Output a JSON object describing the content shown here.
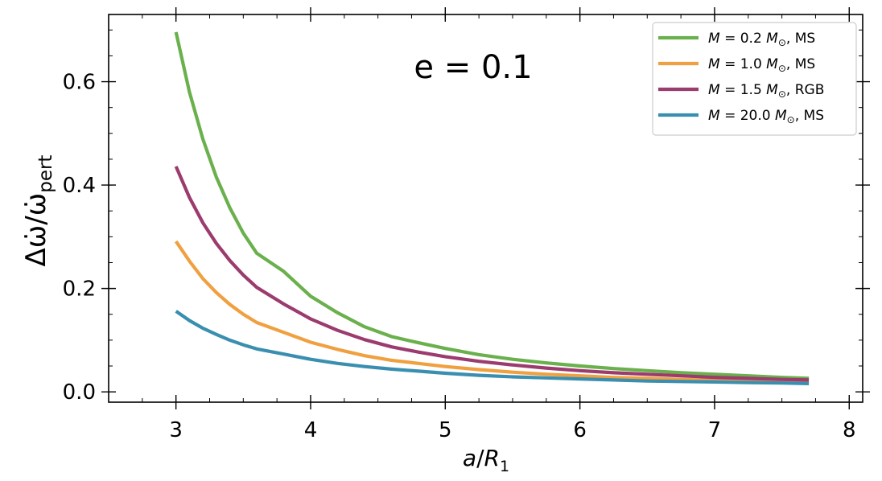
{
  "chart_data": {
    "type": "line",
    "title": "",
    "annotation": "e = 0.1",
    "xlabel_var": "a",
    "xlabel_slash": "/",
    "xlabel_var2": "R",
    "xlabel_sub": "1",
    "ylabel_main": "Δω̇/ω̇",
    "ylabel_sub": "pert",
    "xlim": [
      2.5,
      8.1
    ],
    "ylim": [
      -0.02,
      0.73
    ],
    "xticks": [
      3,
      4,
      5,
      6,
      7,
      8
    ],
    "xtick_labels": [
      "3",
      "4",
      "5",
      "6",
      "7",
      "8"
    ],
    "yticks": [
      0.0,
      0.2,
      0.4,
      0.6
    ],
    "ytick_labels": [
      "0.0",
      "0.2",
      "0.4",
      "0.6"
    ],
    "grid": false,
    "legend_position": "top-right",
    "x": [
      3.0,
      3.1,
      3.2,
      3.3,
      3.4,
      3.5,
      3.6,
      3.8,
      4.0,
      4.2,
      4.4,
      4.6,
      4.8,
      5.0,
      5.25,
      5.5,
      5.75,
      6.0,
      6.25,
      6.5,
      6.75,
      7.0,
      7.25,
      7.5,
      7.7
    ],
    "series": [
      {
        "name": "M = 0.2 M⊙, MS",
        "legend_parts": [
          "M",
          " = 0.2 ",
          "M",
          "⊙",
          ", MS"
        ],
        "color": "#6ab04c",
        "values": [
          0.696,
          0.58,
          0.489,
          0.415,
          0.356,
          0.307,
          0.268,
          0.233,
          0.185,
          0.153,
          0.126,
          0.107,
          0.095,
          0.084,
          0.072,
          0.063,
          0.056,
          0.05,
          0.045,
          0.041,
          0.037,
          0.034,
          0.031,
          0.028,
          0.026
        ]
      },
      {
        "name": "M = 1.0 M⊙, MS",
        "legend_parts": [
          "M",
          " = 1.0 ",
          "M",
          "⊙",
          ", MS"
        ],
        "color": "#f0a040",
        "values": [
          0.291,
          0.253,
          0.219,
          0.192,
          0.169,
          0.15,
          0.134,
          0.115,
          0.096,
          0.082,
          0.07,
          0.061,
          0.055,
          0.049,
          0.043,
          0.038,
          0.034,
          0.031,
          0.028,
          0.026,
          0.024,
          0.022,
          0.021,
          0.02,
          0.019
        ]
      },
      {
        "name": "M = 1.5 M⊙, RGB",
        "legend_parts": [
          "M",
          " = 1.5 ",
          "M",
          "⊙",
          ", RGB"
        ],
        "color": "#9b3b6e",
        "values": [
          0.436,
          0.376,
          0.327,
          0.287,
          0.254,
          0.226,
          0.202,
          0.17,
          0.141,
          0.119,
          0.101,
          0.087,
          0.077,
          0.068,
          0.059,
          0.052,
          0.046,
          0.041,
          0.037,
          0.034,
          0.031,
          0.028,
          0.026,
          0.024,
          0.023
        ]
      },
      {
        "name": "M = 20.0 M⊙, MS",
        "legend_parts": [
          "M",
          " = 20.0 ",
          "M",
          "⊙",
          ", MS"
        ],
        "color": "#3a8fb0",
        "values": [
          0.156,
          0.138,
          0.123,
          0.111,
          0.1,
          0.091,
          0.083,
          0.073,
          0.063,
          0.055,
          0.049,
          0.044,
          0.04,
          0.036,
          0.032,
          0.029,
          0.027,
          0.025,
          0.023,
          0.021,
          0.02,
          0.019,
          0.018,
          0.017,
          0.016
        ]
      }
    ]
  }
}
